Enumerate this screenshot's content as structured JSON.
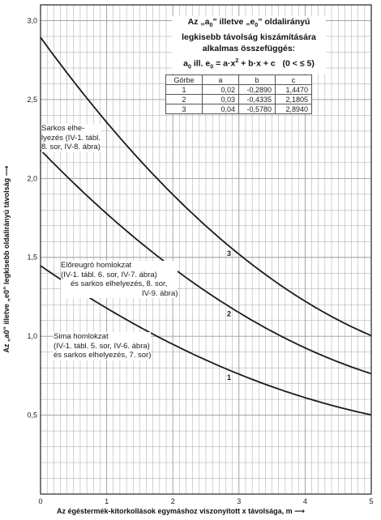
{
  "chart_data": {
    "type": "line",
    "xlabel": "Az égéstermék-kitorkollások egymáshoz viszonyított x távolsága, m ⟶",
    "ylabel": "Az „a0” illetve „e0” legkisebb oldalirányú távolság ⟶",
    "xlim": [
      0,
      5
    ],
    "ylim": [
      0,
      3.1
    ],
    "x_ticks": [
      "0",
      "1",
      "2",
      "3",
      "4",
      "5"
    ],
    "y_ticks": [
      "0,5",
      "1,0",
      "1,5",
      "2,0",
      "2,5",
      "3,0"
    ],
    "y_tick_values": [
      0.5,
      1.0,
      1.5,
      2.0,
      2.5,
      3.0
    ],
    "grid": true,
    "series": [
      {
        "name": "1",
        "a": 0.02,
        "b": -0.289,
        "c": 1.447,
        "x": [
          0,
          0.5,
          1,
          1.5,
          2,
          2.5,
          3,
          3.5,
          4,
          4.5,
          5
        ],
        "y": [
          1.447,
          1.308,
          1.178,
          1.058,
          0.949,
          0.85,
          0.76,
          0.681,
          0.611,
          0.552,
          0.502
        ]
      },
      {
        "name": "2",
        "a": 0.03,
        "b": -0.4335,
        "c": 2.1805,
        "x": [
          0,
          0.5,
          1,
          1.5,
          2,
          2.5,
          3,
          3.5,
          4,
          4.5,
          5
        ],
        "y": [
          2.181,
          1.971,
          1.777,
          1.598,
          1.434,
          1.284,
          1.15,
          1.031,
          0.927,
          0.837,
          0.763
        ]
      },
      {
        "name": "3",
        "a": 0.04,
        "b": -0.578,
        "c": 2.894,
        "x": [
          0,
          0.5,
          1,
          1.5,
          2,
          2.5,
          3,
          3.5,
          4,
          4.5,
          5
        ],
        "y": [
          2.894,
          2.615,
          2.356,
          2.117,
          1.898,
          1.699,
          1.52,
          1.361,
          1.222,
          1.103,
          1.004
        ]
      }
    ]
  },
  "equation_box": {
    "line1": "Az „a",
    "line1_sub": "0",
    "line1_mid": "” illetve „e",
    "line1_sub2": "0",
    "line1_end": "” oldalirányú",
    "line2": "legkisebb távolság kiszámítására",
    "line3": "alkalmas összefüggés:",
    "formula_a": "a",
    "formula_a_sub": "0",
    "formula_mid": " ill. e",
    "formula_e_sub": "0",
    "formula_rest": " = a·x",
    "formula_sup": "2",
    "formula_end": " + b·x + c",
    "formula_range": "(0 < ≤ 5)"
  },
  "coef_table": {
    "headers": [
      "Görbe",
      "a",
      "b",
      "c"
    ],
    "rows": [
      [
        "1",
        "0,02",
        "-0,2890",
        "1,4470"
      ],
      [
        "2",
        "0,03",
        "-0,4335",
        "2,1805"
      ],
      [
        "3",
        "0,04",
        "-0,5780",
        "2,8940"
      ]
    ]
  },
  "annotations": {
    "sarkos": [
      "Sarkos elhe-",
      "lyezés (IV-1. tábl.",
      "8. sor, IV-8. ábra)"
    ],
    "eloreugro": [
      "Előreugró homlokzat",
      "(IV-1. tábl. 6. sor, IV-7. ábra)",
      "és sarkos elhelyezés, 8. sor,",
      "IV-9. ábra)"
    ],
    "sima": [
      "Sima homlokzat",
      "(IV-1. tábl. 5. sor, IV-6. ábra)",
      "és sarkos elhelyezés, 7. sor)"
    ]
  },
  "curve_labels": [
    "1",
    "2",
    "3"
  ],
  "colors": {
    "curve": "#1a1a1a",
    "grid": "#9a9a9a",
    "frame": "#222222"
  }
}
